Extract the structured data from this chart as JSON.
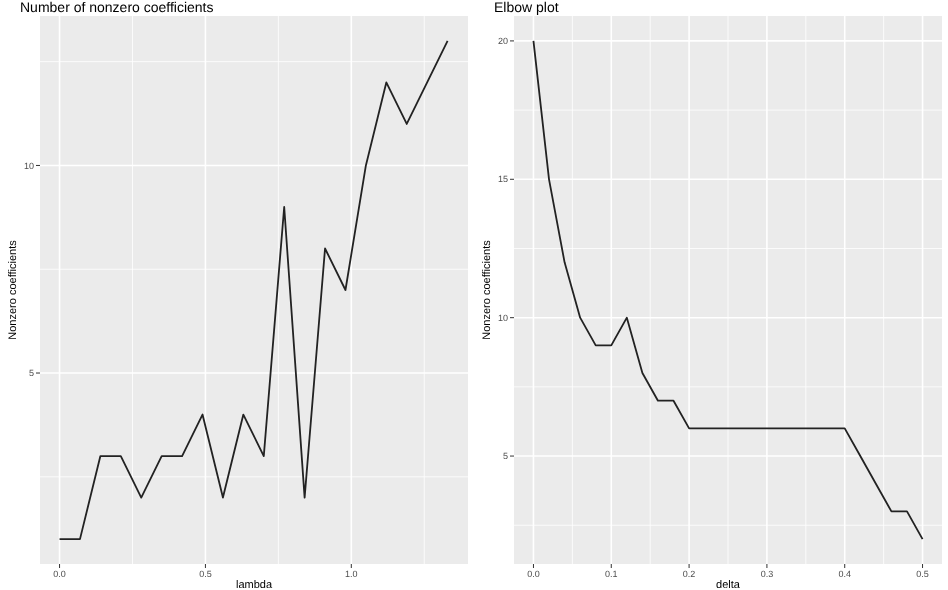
{
  "chart_data": [
    {
      "type": "line",
      "title": "Number of nonzero coefficients",
      "xlabel": "lambda",
      "ylabel": "Nonzero coefficients",
      "x": [
        0,
        0.07,
        0.14,
        0.21,
        0.28,
        0.35,
        0.42,
        0.49,
        0.56,
        0.63,
        0.7,
        0.77,
        0.84,
        0.91,
        0.98,
        1.05,
        1.12,
        1.19,
        1.26,
        1.33
      ],
      "series": [
        {
          "color": "#222222",
          "values": [
            1,
            1,
            3,
            3,
            2,
            3,
            3,
            4,
            2,
            4,
            3,
            9,
            2,
            8,
            7,
            10,
            12,
            11,
            12,
            13
          ]
        }
      ],
      "xlim": [
        -0.067,
        1.4
      ],
      "xticks": [
        {
          "value": 0,
          "label": "0.0"
        },
        {
          "value": 0.5,
          "label": "0.5"
        },
        {
          "value": 1,
          "label": "1.0"
        }
      ],
      "ylim": [
        0.4,
        13.6
      ],
      "yticks": [
        5,
        10
      ],
      "grid": true
    },
    {
      "type": "line",
      "title": "Elbow plot",
      "xlabel": "delta",
      "ylabel": "Nonzero coefficients",
      "x": [
        0,
        0.02,
        0.04,
        0.06,
        0.08,
        0.1,
        0.12,
        0.14,
        0.16,
        0.18,
        0.2,
        0.22,
        0.24,
        0.26,
        0.28,
        0.3,
        0.32,
        0.34,
        0.36,
        0.38,
        0.4,
        0.42,
        0.44,
        0.46,
        0.48,
        0.5
      ],
      "series": [
        {
          "color": "#222222",
          "values": [
            20,
            15,
            12,
            10,
            9,
            9,
            10,
            8,
            7,
            7,
            6,
            6,
            6,
            6,
            6,
            6,
            6,
            6,
            6,
            6,
            6,
            5,
            4,
            3,
            3,
            2
          ]
        }
      ],
      "xlim": [
        -0.025,
        0.525
      ],
      "xticks": [
        {
          "value": 0,
          "label": "0.0"
        },
        {
          "value": 0.1,
          "label": "0.1"
        },
        {
          "value": 0.2,
          "label": "0.2"
        },
        {
          "value": 0.3,
          "label": "0.3"
        },
        {
          "value": 0.4,
          "label": "0.4"
        },
        {
          "value": 0.5,
          "label": "0.5"
        }
      ],
      "ylim": [
        1.1,
        20.9
      ],
      "yticks": [
        5,
        10,
        15,
        20
      ],
      "grid": true
    }
  ]
}
